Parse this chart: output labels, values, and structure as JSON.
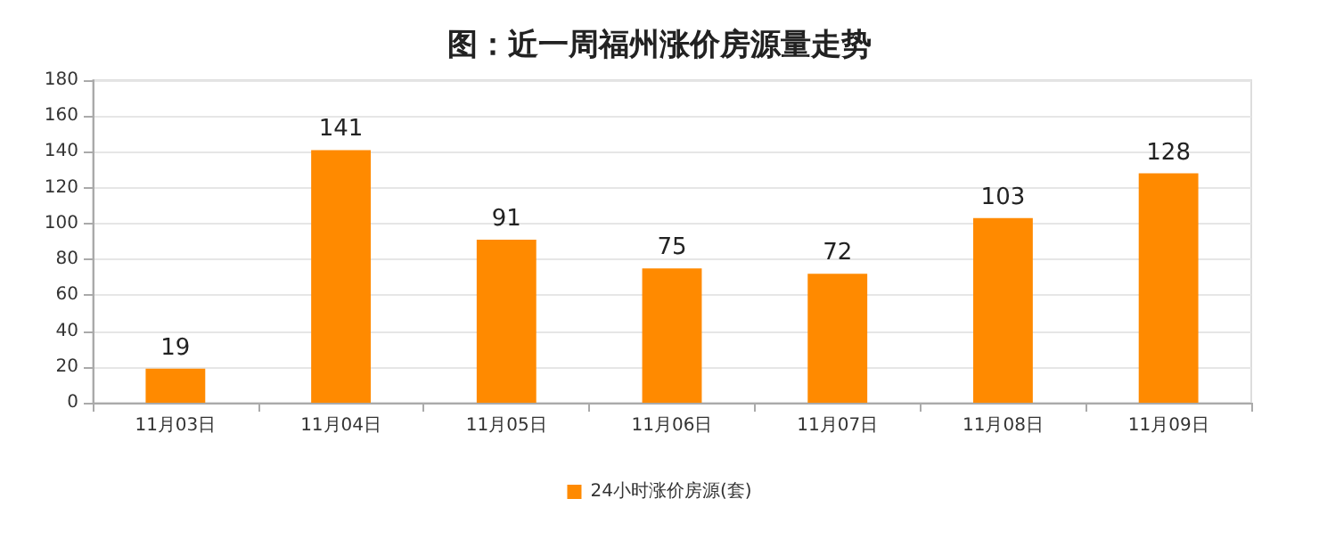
{
  "chart_data": {
    "type": "bar",
    "title": "图：近一周福州涨价房源量走势",
    "categories": [
      "11月03日",
      "11月04日",
      "11月05日",
      "11月06日",
      "11月07日",
      "11月08日",
      "11月09日"
    ],
    "series": [
      {
        "name": "24小时涨价房源(套)",
        "color": "#ff8a00",
        "values": [
          19,
          141,
          91,
          75,
          72,
          103,
          128
        ]
      }
    ],
    "ylim": [
      0,
      180
    ],
    "yticks": [
      0,
      20,
      40,
      60,
      80,
      100,
      120,
      140,
      160,
      180
    ],
    "grid": "y",
    "legend": "bottom",
    "data_labels": true
  }
}
